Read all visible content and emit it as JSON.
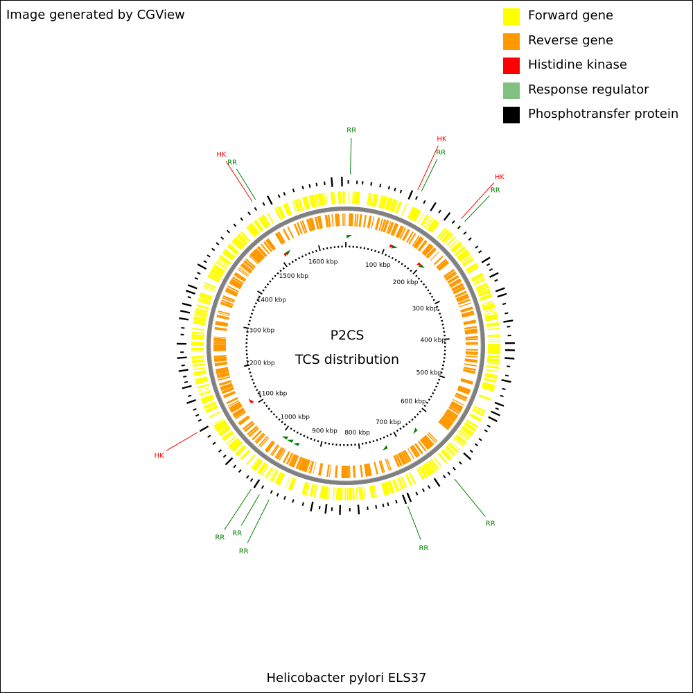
{
  "credit": "Image generated by CGView",
  "legend": [
    {
      "label": "Forward gene",
      "color": "#ffff00"
    },
    {
      "label": "Reverse gene",
      "color": "#ff9900"
    },
    {
      "label": "Histidine kinase",
      "color": "#ff0000"
    },
    {
      "label": "Response regulator",
      "color": "#80c080"
    },
    {
      "label": "Phosphotransfer protein",
      "color": "#000000"
    }
  ],
  "center": {
    "title": "P2CS",
    "subtitle": "TCS distribution"
  },
  "genome_name": "Helicobacter pylori ELS37",
  "colors": {
    "forward": "#ffff00",
    "reverse": "#ff9900",
    "backbone": "#808080",
    "hk": "#ff0000",
    "rr": "#008000",
    "ticks": "#000000"
  },
  "chart_data": {
    "type": "circular_genome_map",
    "genome_length_kbp": 1670,
    "scale_labels": [
      "100 kbp",
      "200 kbp",
      "300 kbp",
      "400 kbp",
      "500 kbp",
      "600 kbp",
      "700 kbp",
      "800 kbp",
      "900 kbp",
      "1000 kbp",
      "1100 kbp",
      "1200 kbp",
      "1300 kbp",
      "1400 kbp",
      "1500 kbp",
      "1600 kbp"
    ],
    "scale_positions_kbp": [
      100,
      200,
      300,
      400,
      500,
      600,
      700,
      800,
      900,
      1000,
      1100,
      1200,
      1300,
      1400,
      1500,
      1600
    ],
    "tcs_features": [
      {
        "label": "RR",
        "type": "RR",
        "position_kbp": 7
      },
      {
        "label": "HK",
        "type": "HK",
        "position_kbp": 115
      },
      {
        "label": "RR",
        "type": "RR",
        "position_kbp": 121
      },
      {
        "label": "HK",
        "type": "HK",
        "position_kbp": 196
      },
      {
        "label": "RR",
        "type": "RR",
        "position_kbp": 203
      },
      {
        "label": "RR",
        "type": "RR",
        "position_kbp": 653
      },
      {
        "label": "RR",
        "type": "RR",
        "position_kbp": 737
      },
      {
        "label": "RR",
        "type": "RR",
        "position_kbp": 958
      },
      {
        "label": "RR",
        "type": "RR",
        "position_kbp": 975
      },
      {
        "label": "RR",
        "type": "RR",
        "position_kbp": 990
      },
      {
        "label": "HK",
        "type": "HK",
        "position_kbp": 1112
      },
      {
        "label": "HK",
        "type": "HK",
        "position_kbp": 1517
      },
      {
        "label": "RR",
        "type": "RR",
        "position_kbp": 1523
      }
    ]
  }
}
